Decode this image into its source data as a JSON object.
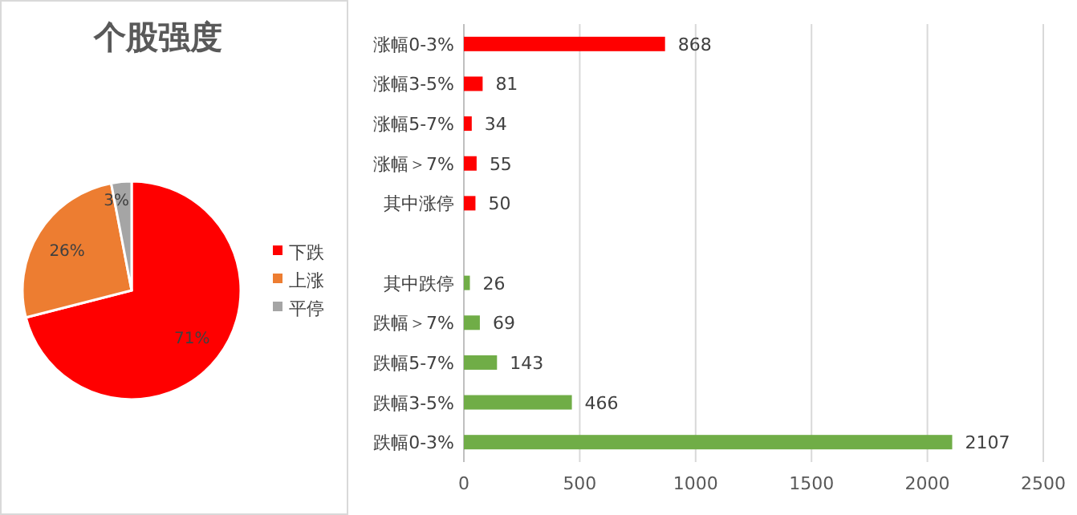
{
  "chart_data": [
    {
      "type": "pie",
      "title": "个股强度",
      "categories": [
        "下跌",
        "上涨",
        "平停"
      ],
      "values": [
        71,
        26,
        3
      ],
      "value_labels": [
        "71%",
        "26%",
        "3%"
      ],
      "colors": [
        "#ff0000",
        "#ed7d31",
        "#a5a5a5"
      ],
      "legend": "right"
    },
    {
      "type": "bar",
      "orientation": "horizontal",
      "categories": [
        "涨幅0-3%",
        "涨幅3-5%",
        "涨幅5-7%",
        "涨幅＞7%",
        "其中涨停",
        null,
        "其中跌停",
        "跌幅＞7%",
        "跌幅5-7%",
        "跌幅3-5%",
        "跌幅0-3%"
      ],
      "values": [
        868,
        81,
        34,
        55,
        50,
        null,
        26,
        69,
        143,
        466,
        2107
      ],
      "colors": [
        "#ff0000",
        "#ff0000",
        "#ff0000",
        "#ff0000",
        "#ff0000",
        null,
        "#70ad47",
        "#70ad47",
        "#70ad47",
        "#70ad47",
        "#70ad47"
      ],
      "xlim": [
        0,
        2500
      ],
      "xticks": [
        0,
        500,
        1000,
        1500,
        2000,
        2500
      ],
      "grid": "x",
      "data_labels": true
    }
  ]
}
